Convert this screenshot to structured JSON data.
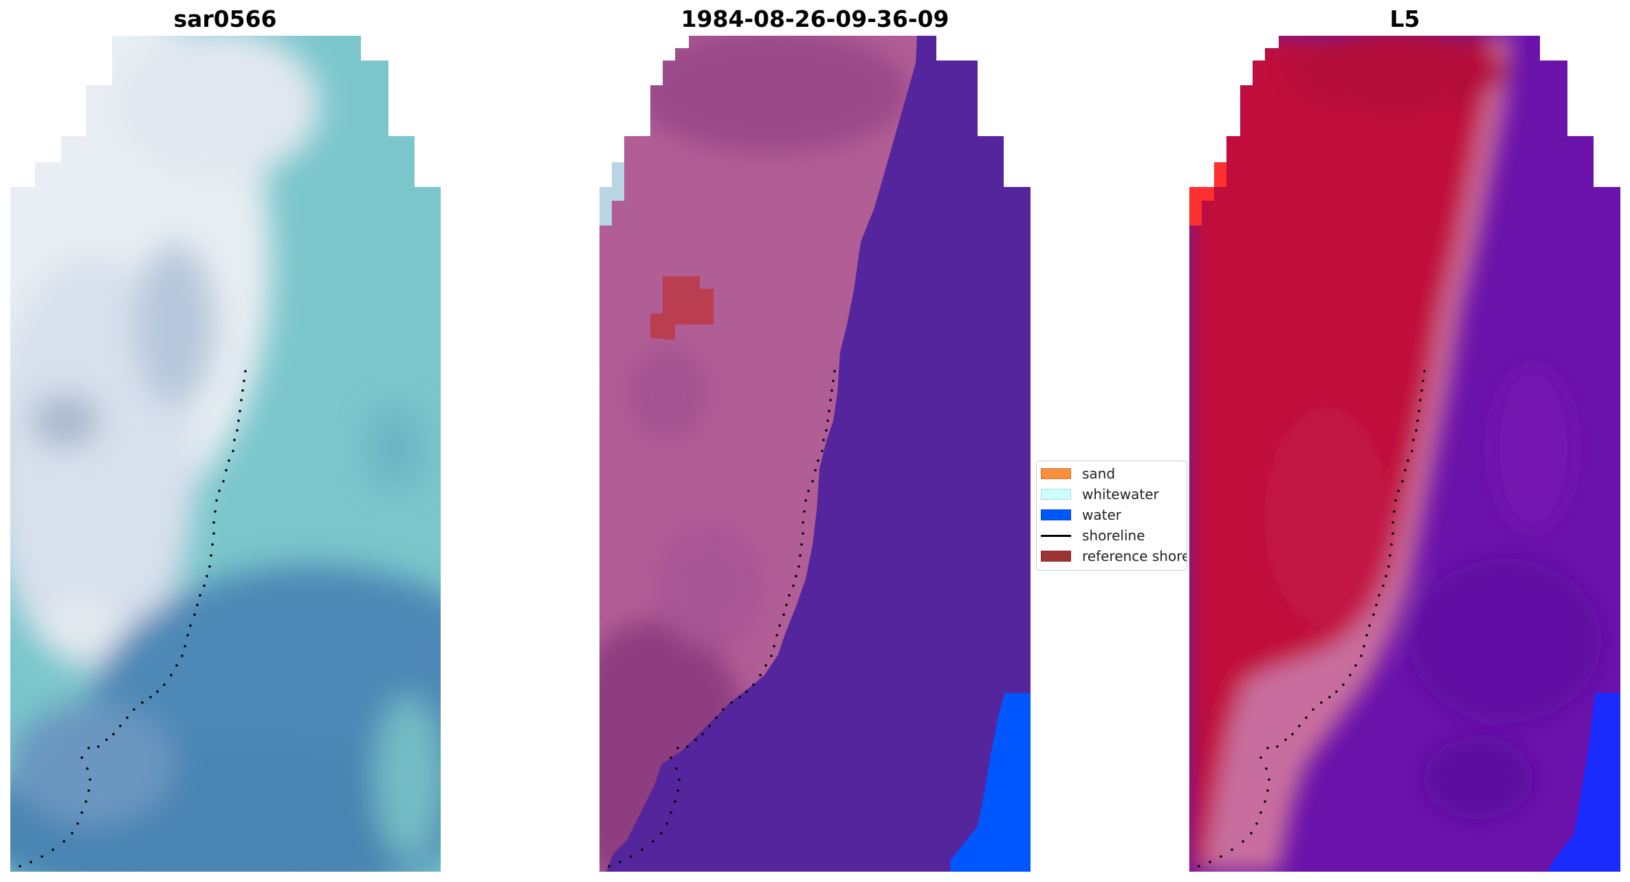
{
  "panels": [
    {
      "title": "sar0566"
    },
    {
      "title": "1984-08-26-09-36-09"
    },
    {
      "title": "L5"
    }
  ],
  "legend": {
    "items": [
      {
        "label": "sand",
        "color": "#f98f3c",
        "kind": "patch"
      },
      {
        "label": "whitewater",
        "color": "#ccfffd",
        "kind": "patch"
      },
      {
        "label": "water",
        "color": "#0056ff",
        "kind": "patch"
      },
      {
        "label": "shoreline",
        "color": "#000000",
        "kind": "line"
      },
      {
        "label": "reference shoreline",
        "color": "#9c3436",
        "kind": "patch"
      }
    ]
  },
  "colors": {
    "rgb_light": "#e6eef3",
    "rgb_teal": "#7cc8cc",
    "rgb_blue": "#4d87b4",
    "class_land": "#b25e96",
    "class_land_dark": "#9a4a88",
    "class_water_dark": "#54259c",
    "class_water_bright": "#0056ff",
    "class_whitewater": "#b8d6e4",
    "class_reference": "#bb3d50",
    "ndwi_red": "#c00a3a",
    "ndwi_purple": "#6a12aa",
    "ndwi_pink": "#c86e9e",
    "ndwi_blue": "#1a2cff",
    "ndwi_bright_red": "#ff3030",
    "shoreline_dots": "#000000"
  }
}
